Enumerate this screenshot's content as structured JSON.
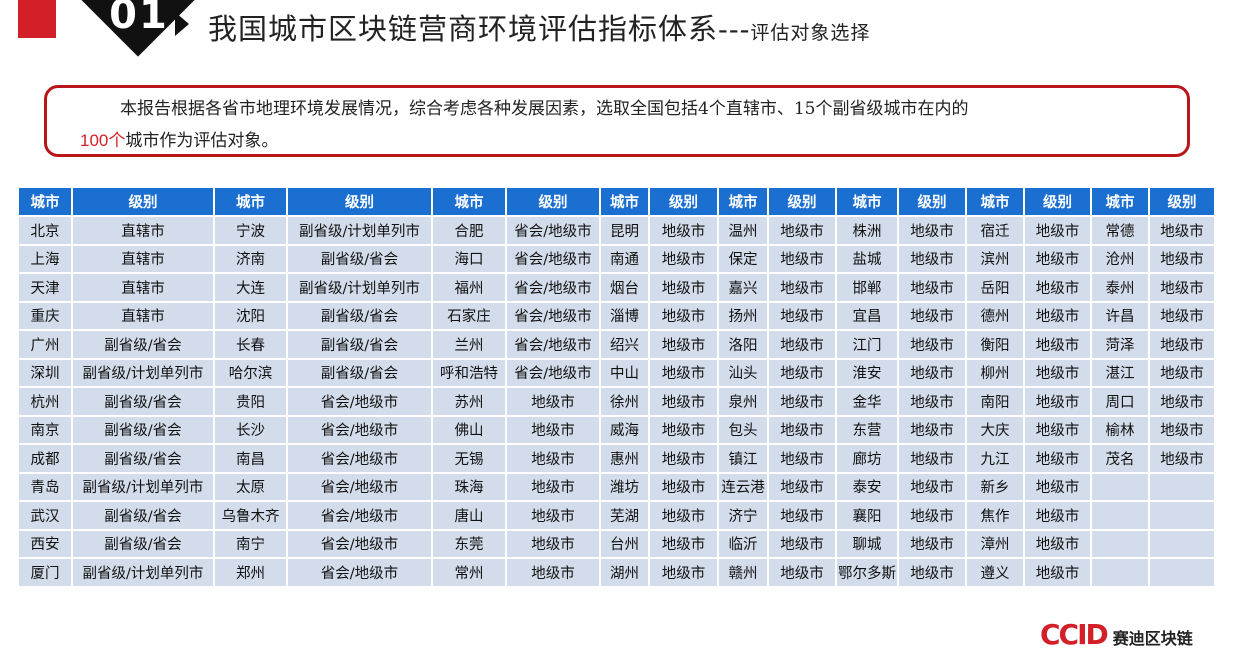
{
  "header": {
    "number": "01",
    "title": "我国城市区块链营商环境评估指标体系",
    "dashes": "---",
    "subtitle": "评估对象选择"
  },
  "intro": {
    "text_part1": "本报告根据各省市地理环境发展情况，综合考虑各种发展因素，选取全国包括4个直辖市、15个副省级城市在内的",
    "highlight": "100个",
    "text_part2": "城市作为评估对象。",
    "highlight_color": "#d31f28"
  },
  "table": {
    "headers": [
      "城市",
      "级别",
      "城市",
      "级别",
      "城市",
      "级别",
      "城市",
      "级别",
      "城市",
      "级别",
      "城市",
      "级别",
      "城市",
      "级别",
      "城市",
      "级别"
    ],
    "rows": [
      [
        "北京",
        "直辖市",
        "宁波",
        "副省级/计划单列市",
        "合肥",
        "省会/地级市",
        "昆明",
        "地级市",
        "温州",
        "地级市",
        "株洲",
        "地级市",
        "宿迁",
        "地级市",
        "常德",
        "地级市"
      ],
      [
        "上海",
        "直辖市",
        "济南",
        "副省级/省会",
        "海口",
        "省会/地级市",
        "南通",
        "地级市",
        "保定",
        "地级市",
        "盐城",
        "地级市",
        "滨州",
        "地级市",
        "沧州",
        "地级市"
      ],
      [
        "天津",
        "直辖市",
        "大连",
        "副省级/计划单列市",
        "福州",
        "省会/地级市",
        "烟台",
        "地级市",
        "嘉兴",
        "地级市",
        "邯郸",
        "地级市",
        "岳阳",
        "地级市",
        "泰州",
        "地级市"
      ],
      [
        "重庆",
        "直辖市",
        "沈阳",
        "副省级/省会",
        "石家庄",
        "省会/地级市",
        "淄博",
        "地级市",
        "扬州",
        "地级市",
        "宜昌",
        "地级市",
        "德州",
        "地级市",
        "许昌",
        "地级市"
      ],
      [
        "广州",
        "副省级/省会",
        "长春",
        "副省级/省会",
        "兰州",
        "省会/地级市",
        "绍兴",
        "地级市",
        "洛阳",
        "地级市",
        "江门",
        "地级市",
        "衡阳",
        "地级市",
        "菏泽",
        "地级市"
      ],
      [
        "深圳",
        "副省级/计划单列市",
        "哈尔滨",
        "副省级/省会",
        "呼和浩特",
        "省会/地级市",
        "中山",
        "地级市",
        "汕头",
        "地级市",
        "淮安",
        "地级市",
        "柳州",
        "地级市",
        "湛江",
        "地级市"
      ],
      [
        "杭州",
        "副省级/省会",
        "贵阳",
        "省会/地级市",
        "苏州",
        "地级市",
        "徐州",
        "地级市",
        "泉州",
        "地级市",
        "金华",
        "地级市",
        "南阳",
        "地级市",
        "周口",
        "地级市"
      ],
      [
        "南京",
        "副省级/省会",
        "长沙",
        "省会/地级市",
        "佛山",
        "地级市",
        "威海",
        "地级市",
        "包头",
        "地级市",
        "东营",
        "地级市",
        "大庆",
        "地级市",
        "榆林",
        "地级市"
      ],
      [
        "成都",
        "副省级/省会",
        "南昌",
        "省会/地级市",
        "无锡",
        "地级市",
        "惠州",
        "地级市",
        "镇江",
        "地级市",
        "廊坊",
        "地级市",
        "九江",
        "地级市",
        "茂名",
        "地级市"
      ],
      [
        "青岛",
        "副省级/计划单列市",
        "太原",
        "省会/地级市",
        "珠海",
        "地级市",
        "潍坊",
        "地级市",
        "连云港",
        "地级市",
        "泰安",
        "地级市",
        "新乡",
        "地级市",
        "",
        ""
      ],
      [
        "武汉",
        "副省级/省会",
        "乌鲁木齐",
        "省会/地级市",
        "唐山",
        "地级市",
        "芜湖",
        "地级市",
        "济宁",
        "地级市",
        "襄阳",
        "地级市",
        "焦作",
        "地级市",
        "",
        ""
      ],
      [
        "西安",
        "副省级/省会",
        "南宁",
        "省会/地级市",
        "东莞",
        "地级市",
        "台州",
        "地级市",
        "临沂",
        "地级市",
        "聊城",
        "地级市",
        "漳州",
        "地级市",
        "",
        ""
      ],
      [
        "厦门",
        "副省级/计划单列市",
        "郑州",
        "省会/地级市",
        "常州",
        "地级市",
        "湖州",
        "地级市",
        "赣州",
        "地级市",
        "鄂尔多斯",
        "地级市",
        "遵义",
        "地级市",
        "",
        ""
      ]
    ]
  },
  "logo": {
    "mark": "CCID",
    "text": "赛迪区块链"
  }
}
